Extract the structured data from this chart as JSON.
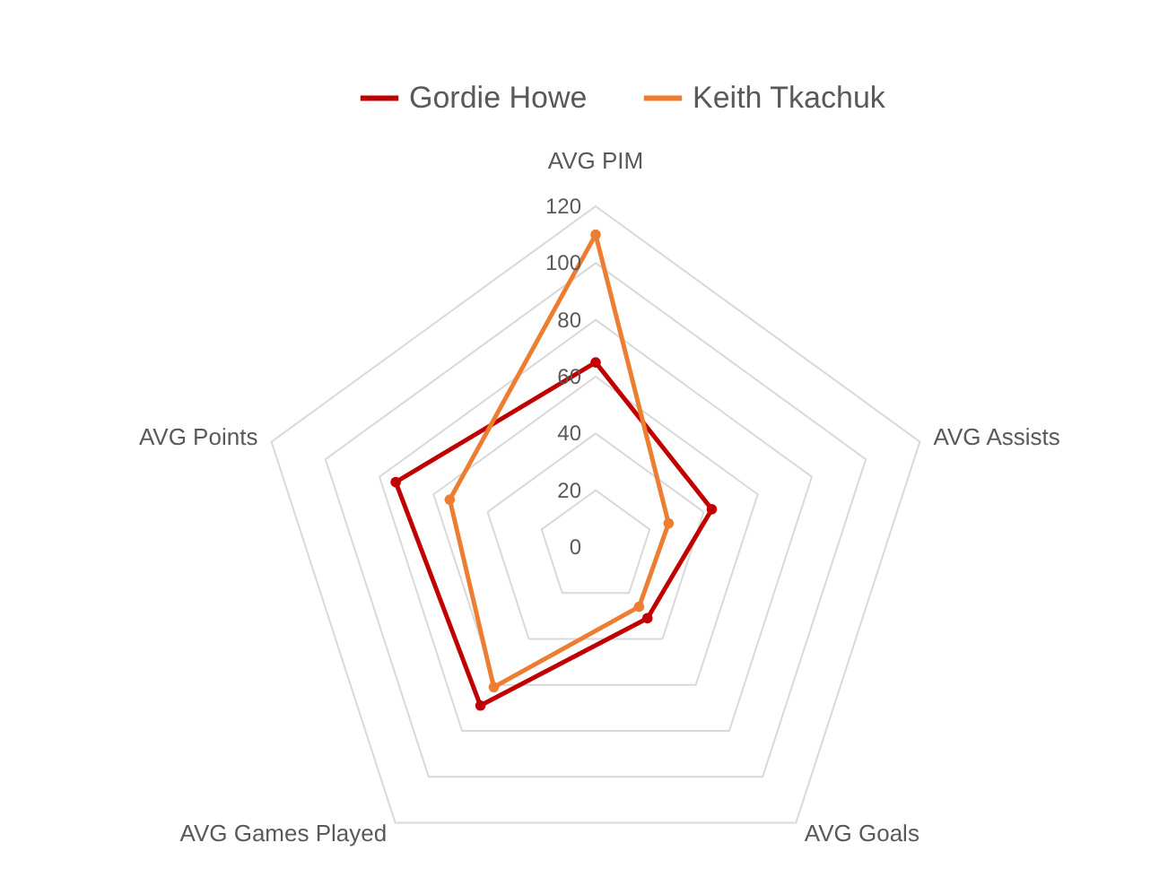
{
  "chart_data": {
    "type": "radar",
    "categories": [
      "AVG PIM",
      "AVG Assists",
      "AVG Goals",
      "AVG Games Played",
      "AVG Points"
    ],
    "series": [
      {
        "name": "Gordie Howe",
        "color": "#c00000",
        "values": [
          65,
          43,
          31,
          69,
          74
        ]
      },
      {
        "name": "Keith Tkachuk",
        "color": "#ed7d31",
        "values": [
          110,
          27,
          26,
          61,
          54
        ]
      }
    ],
    "ylim": [
      0,
      120
    ],
    "yticks": [
      0,
      20,
      40,
      60,
      80,
      100,
      120
    ],
    "grid": true,
    "legend": "top",
    "marker": "circle"
  }
}
